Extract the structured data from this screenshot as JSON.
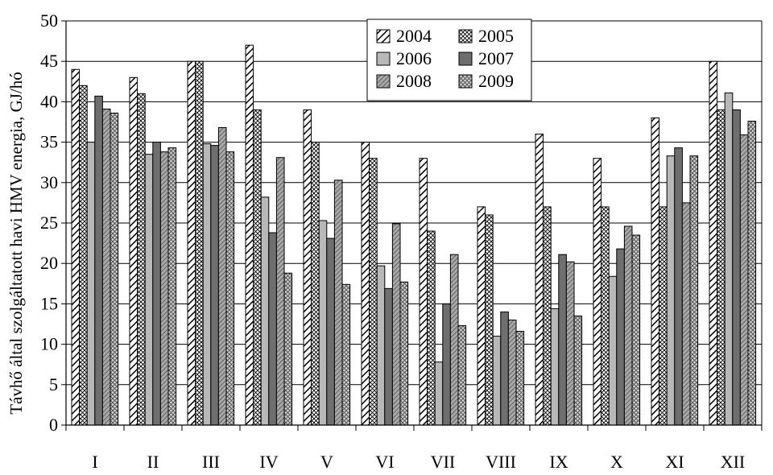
{
  "chart_data": {
    "type": "bar",
    "ylabel": "Távhő által szolgáltatott havi HMV energia, GJ/hó",
    "xlabel": "",
    "ylim": [
      0,
      50
    ],
    "yticks": [
      0,
      5,
      10,
      15,
      20,
      25,
      30,
      35,
      40,
      45,
      50
    ],
    "grid": "horizontal",
    "legend_position": "top-center",
    "categories": [
      "I",
      "II",
      "III",
      "IV",
      "V",
      "VI",
      "VII",
      "VIII",
      "IX",
      "X",
      "XI",
      "XII"
    ],
    "series": [
      {
        "name": "2004",
        "pattern": "diagonal-hatch",
        "color": "#ffffff",
        "values": [
          44,
          43,
          45,
          47,
          39,
          35,
          33,
          27,
          36,
          33,
          38,
          45
        ]
      },
      {
        "name": "2005",
        "pattern": "cross-hatch",
        "color": "#ffffff",
        "values": [
          42,
          41,
          45,
          39,
          35,
          33,
          24,
          26,
          27,
          27,
          27,
          39
        ]
      },
      {
        "name": "2006",
        "pattern": "solid",
        "color": "#b8b8b8",
        "values": [
          35,
          33.5,
          34.8,
          28.2,
          25.3,
          19.7,
          7.8,
          11,
          14.4,
          18.4,
          33.3,
          41.1
        ]
      },
      {
        "name": "2007",
        "pattern": "solid",
        "color": "#6e6e6e",
        "values": [
          40.7,
          35,
          34.6,
          23.8,
          23.1,
          16.9,
          15,
          14,
          21.1,
          21.8,
          34.3,
          39
        ]
      },
      {
        "name": "2008",
        "pattern": "dense-diagonal",
        "color": "#9a9a9a",
        "values": [
          39.1,
          33.8,
          36.8,
          33.1,
          30.3,
          24.9,
          21.1,
          13,
          20.2,
          24.6,
          27.5,
          35.9
        ]
      },
      {
        "name": "2009",
        "pattern": "dotted-cross",
        "color": "#cfcfcf",
        "values": [
          38.6,
          34.3,
          33.8,
          18.8,
          17.4,
          17.7,
          12.3,
          11.6,
          13.5,
          23.5,
          33.3,
          37.6
        ]
      }
    ]
  }
}
